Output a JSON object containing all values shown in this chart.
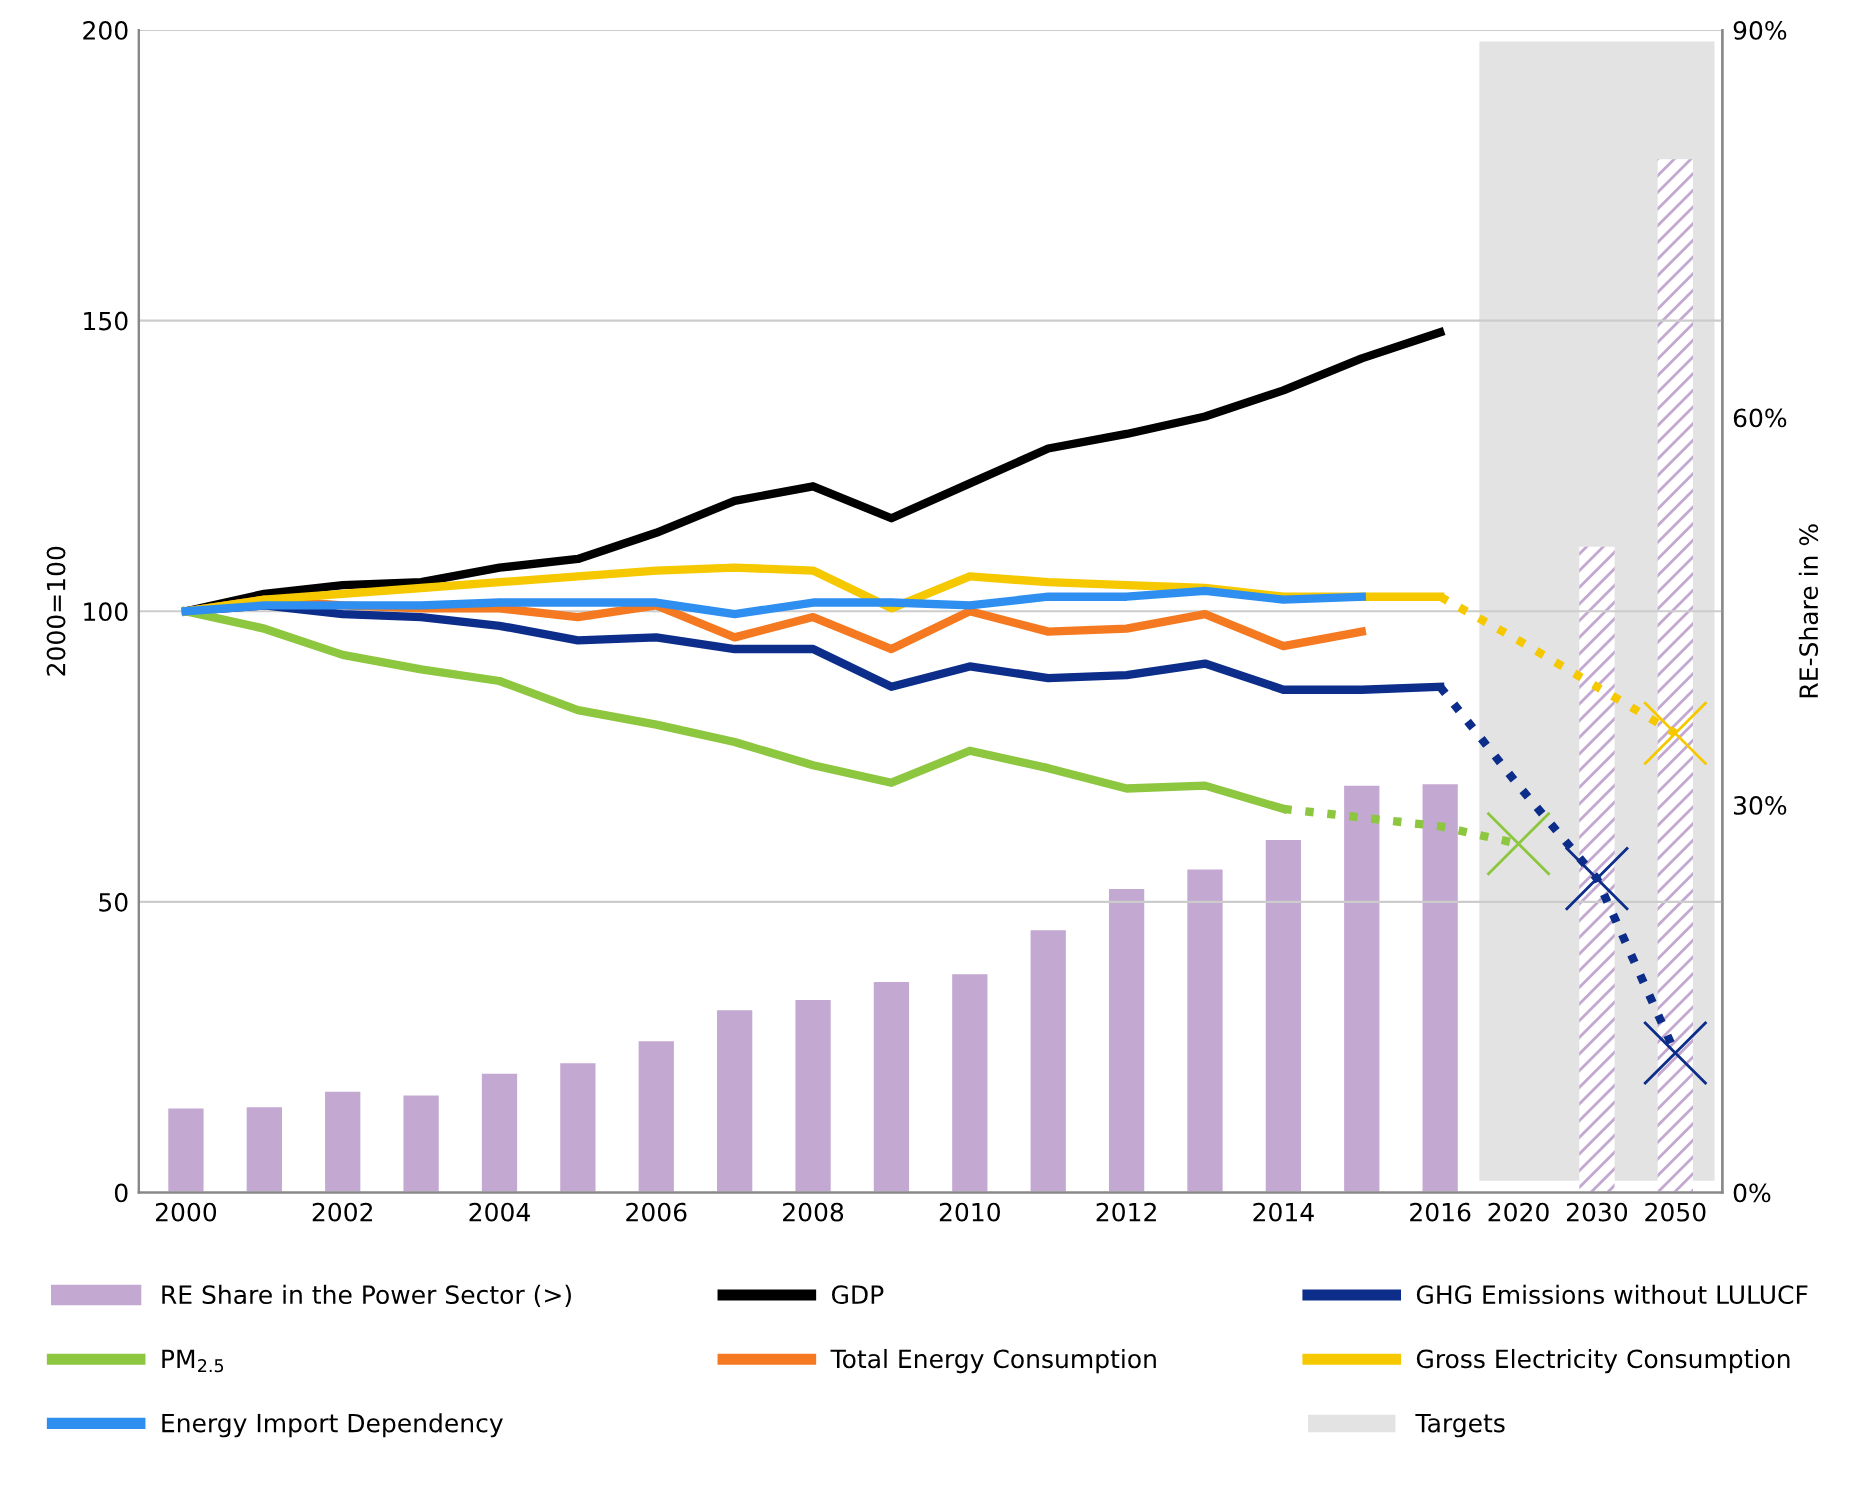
{
  "chart_data": {
    "type": "line",
    "categories": [
      "2000",
      null,
      "2002",
      null,
      "2004",
      null,
      "2006",
      null,
      "2008",
      null,
      "2010",
      null,
      "2012",
      null,
      "2014",
      null,
      "2016",
      "2020",
      "2030",
      "2050"
    ],
    "ylabel": "2000=100",
    "y2label": "RE-Share in %",
    "ylim": [
      0,
      200
    ],
    "yticks": [
      0,
      50,
      100,
      150,
      200
    ],
    "y2lim": [
      0,
      90
    ],
    "y2ticks": [
      {
        "value": 0,
        "label": "0%"
      },
      {
        "value": 30,
        "label": "30%"
      },
      {
        "value": 60,
        "label": "60%"
      },
      {
        "value": 90,
        "label": "90%"
      }
    ],
    "grid": "y",
    "legend": "bottom",
    "bands": [
      {
        "axis": "x",
        "from": "2020",
        "to": "2050",
        "label": "Targets",
        "color": "#e3e3e3"
      }
    ],
    "series": [
      {
        "name": "RE Share in the Power Sector (>)",
        "type": "bar",
        "axis": "y2",
        "color": "#c3a8d1",
        "values": [
          6.5,
          6.6,
          7.8,
          7.5,
          9.2,
          10.0,
          11.7,
          14.1,
          14.9,
          16.3,
          16.9,
          20.3,
          23.5,
          25.0,
          27.3,
          31.5,
          31.6,
          null,
          50,
          80
        ]
      },
      {
        "name": "GDP",
        "color": "#000000",
        "values": [
          100,
          103,
          104.5,
          105,
          107.5,
          109,
          113.5,
          119,
          121.5,
          116,
          122,
          128,
          130.5,
          133.5,
          138,
          143.5,
          148,
          null,
          null,
          null
        ]
      },
      {
        "name": "GHG Emissions without LULUCF",
        "color": "#0d2d8a",
        "values": [
          100,
          101,
          99.5,
          99,
          97.5,
          95,
          95.5,
          93.5,
          93.5,
          87,
          90.5,
          88.5,
          89,
          91,
          86.5,
          86.5,
          87,
          null,
          null,
          null
        ]
      },
      {
        "name": "PM$_{2.5}$",
        "color": "#8dc63f",
        "values": [
          100,
          97,
          92.5,
          90,
          88,
          83,
          80.5,
          77.5,
          73.5,
          70.5,
          76,
          73,
          69.5,
          70,
          66,
          null,
          null,
          null,
          null,
          null
        ]
      },
      {
        "name": "Total Energy Consumption",
        "color": "#f47920",
        "values": [
          100,
          102,
          101,
          100.5,
          100.5,
          99,
          101,
          95.5,
          99,
          93.5,
          100,
          96.5,
          97,
          99.5,
          94,
          96.5,
          null,
          null,
          null,
          null
        ]
      },
      {
        "name": "Gross Electricity Consumption",
        "color": "#f5c800",
        "values": [
          100,
          102,
          103,
          104,
          105,
          106,
          107,
          107.5,
          107,
          100.5,
          106,
          105,
          104.5,
          104,
          102.5,
          102.5,
          102.5,
          null,
          null,
          null
        ]
      },
      {
        "name": "Energy Import Dependency",
        "color": "#2e8ff0",
        "values": [
          100,
          101,
          101,
          101,
          101.5,
          101.5,
          101.5,
          99.5,
          101.5,
          101.5,
          101,
          102.5,
          102.5,
          103.5,
          102,
          102.5,
          null,
          null,
          null,
          null
        ]
      },
      {
        "type": "line",
        "line_style": "dotted",
        "color": "#0d2d8a",
        "values": [
          null,
          null,
          null,
          null,
          null,
          null,
          null,
          null,
          null,
          null,
          null,
          null,
          null,
          null,
          null,
          null,
          87,
          70,
          54,
          24
        ]
      },
      {
        "type": "line",
        "line_style": "dotted",
        "color": "#8dc63f",
        "values": [
          null,
          null,
          null,
          null,
          null,
          null,
          null,
          null,
          null,
          null,
          null,
          null,
          null,
          null,
          66,
          64.5,
          63,
          60,
          null,
          null
        ]
      },
      {
        "type": "line",
        "line_style": "dotted",
        "color": "#f5c800",
        "values": [
          null,
          null,
          null,
          null,
          null,
          null,
          null,
          null,
          null,
          null,
          null,
          null,
          null,
          null,
          null,
          null,
          102.5,
          95,
          87,
          79
        ]
      },
      {
        "type": "scatter",
        "marker": "cross",
        "color": "#8dc63f",
        "values": [
          null,
          null,
          null,
          null,
          null,
          null,
          null,
          null,
          null,
          null,
          null,
          null,
          null,
          null,
          null,
          null,
          null,
          60,
          null,
          null
        ]
      },
      {
        "type": "scatter",
        "marker": "cross",
        "color": "#0d2d8a",
        "values": [
          null,
          null,
          null,
          null,
          null,
          null,
          null,
          null,
          null,
          null,
          null,
          null,
          null,
          null,
          null,
          null,
          null,
          null,
          54,
          24
        ]
      },
      {
        "type": "scatter",
        "marker": "cross",
        "color": "#f5c800",
        "values": [
          null,
          null,
          null,
          null,
          null,
          null,
          null,
          null,
          null,
          null,
          null,
          null,
          null,
          null,
          null,
          null,
          null,
          null,
          null,
          79
        ]
      }
    ]
  }
}
